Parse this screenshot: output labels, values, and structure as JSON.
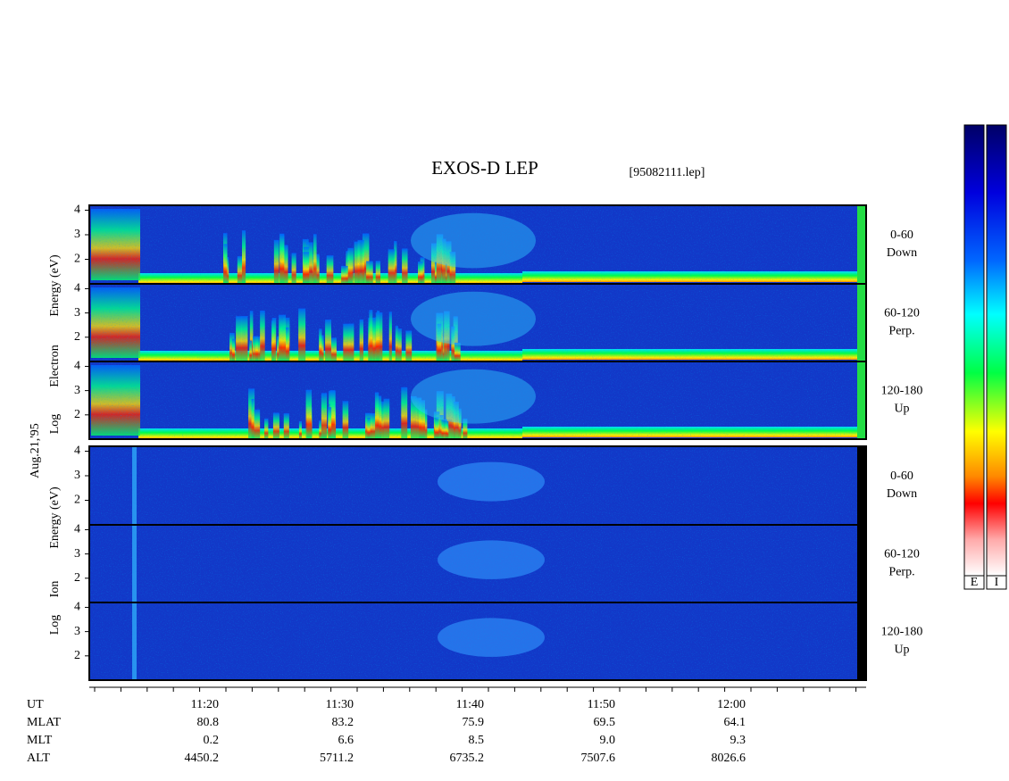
{
  "title": "EXOS-D LEP",
  "file": "[95082111.lep]",
  "date": "Aug.21,'95",
  "chart_data": {
    "type": "spectrogram",
    "ylim": [
      1,
      4.2
    ],
    "yticks": [
      2,
      3,
      4
    ]
  },
  "electron_axis_label": [
    "Log",
    "Electron",
    "Energy (eV)"
  ],
  "ion_axis_label": [
    "Log",
    "Ion",
    "Energy (eV)"
  ],
  "pitch_angles": [
    {
      "range": "0-60",
      "dir": "Down"
    },
    {
      "range": "60-120",
      "dir": "Perp."
    },
    {
      "range": "120-180",
      "dir": "Up"
    }
  ],
  "ephemeris": {
    "rows": [
      {
        "name": "UT",
        "values": [
          "11:20",
          "11:30",
          "11:40",
          "11:50",
          "12:00"
        ]
      },
      {
        "name": "MLAT",
        "values": [
          "80.8",
          "83.2",
          "75.9",
          "69.5",
          "64.1"
        ]
      },
      {
        "name": "MLT",
        "values": [
          "0.2",
          "6.6",
          "8.5",
          "9.0",
          "9.3"
        ]
      },
      {
        "name": "ALT",
        "values": [
          "4450.2",
          "5711.2",
          "6735.2",
          "7507.6",
          "8026.6"
        ]
      }
    ]
  },
  "colorbar_labels": [
    "E",
    "I"
  ]
}
